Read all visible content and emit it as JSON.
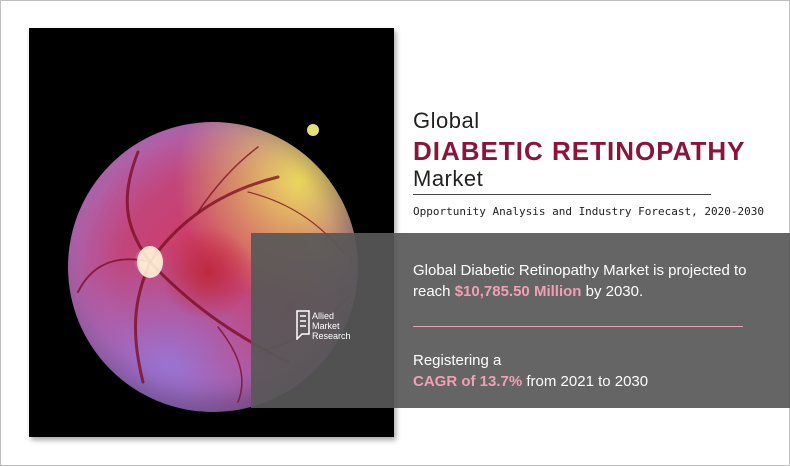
{
  "header": {
    "line1": "Global",
    "line2": "DIABETIC RETINOPATHY",
    "line3": "Market",
    "subtitle": "Opportunity Analysis and Industry Forecast, 2020-2030"
  },
  "stat1": {
    "prefix": "Global Diabetic Retinopathy Market is projected to reach ",
    "value": "$10,785.50 Million",
    "suffix": " by 2030."
  },
  "stat2": {
    "line1": "Registering a",
    "value": "CAGR of 13.7%",
    "suffix": " from 2021 to 2030"
  },
  "logo": {
    "line1": "Allied",
    "line2": "Market",
    "line3": "Research"
  },
  "colors": {
    "accent": "#8a1538",
    "highlight": "#f0a0b4",
    "overlay": "#585858"
  },
  "image": {
    "subject": "retina-fundus-photo"
  }
}
